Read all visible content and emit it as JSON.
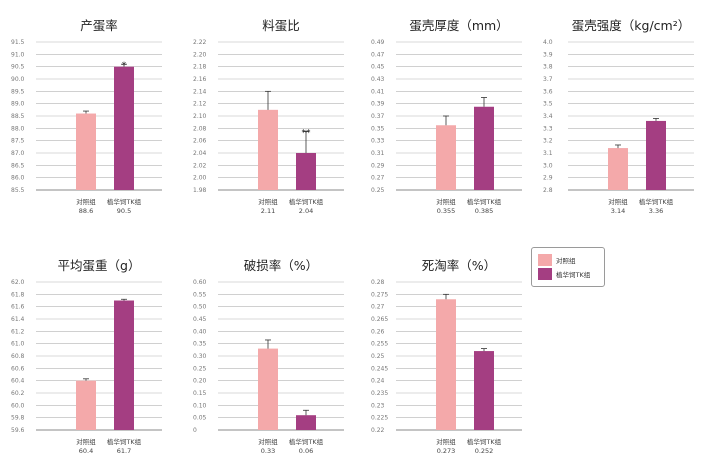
{
  "colors": {
    "control": "#f4a9aa",
    "treatment": "#a43e82"
  },
  "legend": {
    "control": "对照组",
    "treatment": "植华饲TK组"
  },
  "chart_data": [
    {
      "type": "bar",
      "title": "产蛋率",
      "categories": [
        "对照组",
        "植华饲TK组"
      ],
      "values": [
        88.6,
        90.5
      ],
      "error": [
        0.1,
        0.1
      ],
      "sig": [
        "",
        "*"
      ],
      "value_labels": [
        "88.6",
        "90.5"
      ],
      "ylim": [
        85.5,
        91.5
      ],
      "yticks": [
        "85.5",
        "86.0",
        "86.5",
        "87.0",
        "87.5",
        "88.0",
        "88.5",
        "89.0",
        "89.5",
        "90.0",
        "90.5",
        "91.0",
        "91.5"
      ],
      "grid": true
    },
    {
      "type": "bar",
      "title": "料蛋比",
      "categories": [
        "对照组",
        "植华饲TK组"
      ],
      "values": [
        2.11,
        2.04
      ],
      "error": [
        0.03,
        0.035
      ],
      "sig": [
        "",
        "**"
      ],
      "value_labels": [
        "2.11",
        "2.04"
      ],
      "ylim": [
        1.98,
        2.22
      ],
      "yticks": [
        "1.98",
        "2.00",
        "2.02",
        "2.04",
        "2.06",
        "2.08",
        "2.10",
        "2.12",
        "2.14",
        "2.16",
        "2.18",
        "2.20",
        "2.22"
      ],
      "grid": true
    },
    {
      "type": "bar",
      "title": "蛋壳厚度（mm）",
      "categories": [
        "对照组",
        "植华饲TK组"
      ],
      "values": [
        0.355,
        0.385
      ],
      "error": [
        0.015,
        0.015
      ],
      "sig": [
        "",
        ""
      ],
      "value_labels": [
        "0.355",
        "0.385"
      ],
      "ylim": [
        0.25,
        0.49
      ],
      "yticks": [
        "0.25",
        "0.27",
        "0.29",
        "0.31",
        "0.33",
        "0.35",
        "0.37",
        "0.39",
        "0.41",
        "0.43",
        "0.45",
        "0.47",
        "0.49"
      ],
      "grid": true
    },
    {
      "type": "bar",
      "title": "蛋壳强度（kg/cm²）",
      "categories": [
        "对照组",
        "植华饲TK组"
      ],
      "values": [
        3.14,
        3.36
      ],
      "error": [
        0.025,
        0.02
      ],
      "sig": [
        "",
        ""
      ],
      "value_labels": [
        "3.14",
        "3.36"
      ],
      "ylim": [
        2.8,
        4.0
      ],
      "yticks": [
        "2.8",
        "2.9",
        "3.0",
        "3.1",
        "3.2",
        "3.3",
        "3.4",
        "3.5",
        "3.6",
        "3.7",
        "3.8",
        "3.9",
        "4.0"
      ],
      "grid": true
    },
    {
      "type": "bar",
      "title": "平均蛋重（g）",
      "categories": [
        "对照组",
        "植华饲TK组"
      ],
      "values": [
        60.4,
        61.7
      ],
      "error": [
        0.03,
        0.02
      ],
      "sig": [
        "",
        ""
      ],
      "value_labels": [
        "60.4",
        "61.7"
      ],
      "ylim": [
        59.6,
        62.0
      ],
      "yticks": [
        "59.6",
        "59.8",
        "60.0",
        "60.2",
        "60.4",
        "60.6",
        "60.8",
        "61.0",
        "61.2",
        "61.4",
        "61.6",
        "61.8",
        "62.0"
      ],
      "grid": true
    },
    {
      "type": "bar",
      "title": "破损率（%）",
      "categories": [
        "对照组",
        "植华饲TK组"
      ],
      "values": [
        0.33,
        0.06
      ],
      "error": [
        0.035,
        0.02
      ],
      "sig": [
        "",
        ""
      ],
      "value_labels": [
        "0.33",
        "0.06"
      ],
      "ylim": [
        0,
        0.6
      ],
      "yticks": [
        "0",
        "0.05",
        "0.10",
        "0.15",
        "0.20",
        "0.25",
        "0.30",
        "0.35",
        "0.40",
        "0.45",
        "0.50",
        "0.55",
        "0.60"
      ],
      "grid": true
    },
    {
      "type": "bar",
      "title": "死淘率（%）",
      "categories": [
        "对照组",
        "植华饲TK组"
      ],
      "values": [
        0.273,
        0.252
      ],
      "error": [
        0.002,
        0.001
      ],
      "sig": [
        "",
        ""
      ],
      "value_labels": [
        "0.273",
        "0.252"
      ],
      "ylim": [
        0.22,
        0.28
      ],
      "yticks": [
        "0.22",
        "0.225",
        "0.23",
        "0.235",
        "0.24",
        "0.245",
        "0.25",
        "0.255",
        "0.26",
        "0.265",
        "0.27",
        "0.275",
        "0.28"
      ],
      "grid": true
    }
  ]
}
